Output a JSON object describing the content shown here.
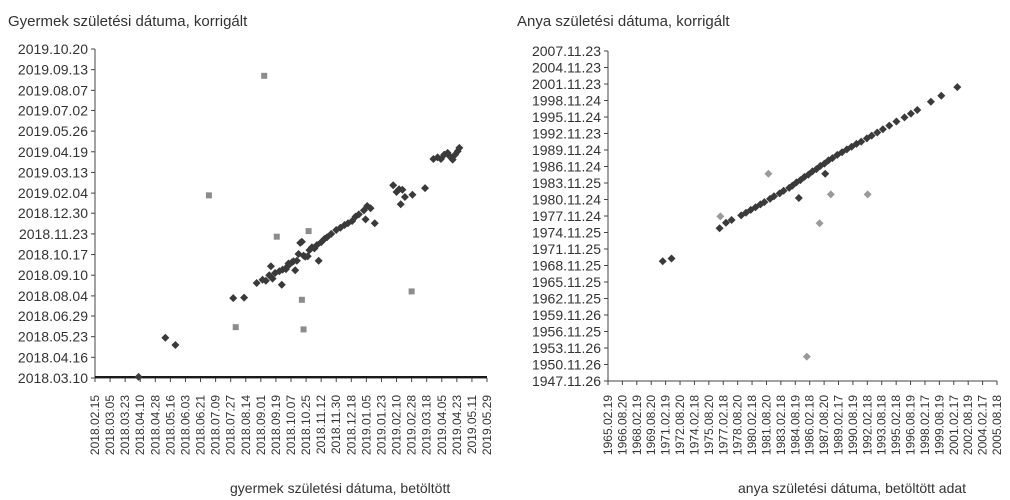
{
  "chart_data": [
    {
      "type": "scatter",
      "title": "Gyermek születési dátuma, korrigált",
      "xlabel": "gyermek születési dátuma, betöltött",
      "ylabel": "Gyermek születési dátuma, korrigált",
      "xlim": [
        "2018-02-15",
        "2019-05-29"
      ],
      "ylim": [
        "2018-03-10",
        "2019-10-20"
      ],
      "x_ticks": [
        "2018.02.15",
        "2018.03.05",
        "2018.03.23",
        "2018.04.10",
        "2018.04.28",
        "2018.05.16",
        "2018.06.03",
        "2018.06.21",
        "2018.07.09",
        "2018.07.27",
        "2018.08.14",
        "2018.09.01",
        "2018.09.19",
        "2018.10.07",
        "2018.10.25",
        "2018.11.12",
        "2018.11.30",
        "2018.12.18",
        "2019.01.05",
        "2019.01.23",
        "2019.02.10",
        "2019.02.28",
        "2019.03.18",
        "2019.04.05",
        "2019.04.23",
        "2019.05.11",
        "2019.05.29"
      ],
      "y_ticks": [
        "2019.10.20",
        "2019.09.13",
        "2019.08.07",
        "2019.07.02",
        "2019.05.26",
        "2019.04.19",
        "2019.03.13",
        "2019.02.04",
        "2018.12.30",
        "2018.11.23",
        "2018.10.17",
        "2018.09.10",
        "2018.08.04",
        "2018.06.29",
        "2018.05.23",
        "2018.04.16",
        "2018.03.10"
      ],
      "grid": false,
      "series": [
        {
          "marker": "diamond",
          "color": "#3a3a3a",
          "points": [
            [
              "2018-04-08",
              "2018-03-12"
            ],
            [
              "2018-05-10",
              "2018-05-21"
            ],
            [
              "2018-05-22",
              "2018-05-08"
            ],
            [
              "2018-07-30",
              "2018-07-31"
            ],
            [
              "2018-08-12",
              "2018-08-01"
            ],
            [
              "2018-08-27",
              "2018-08-27"
            ],
            [
              "2018-09-03",
              "2018-09-02"
            ],
            [
              "2018-09-07",
              "2018-08-31"
            ],
            [
              "2018-09-11",
              "2018-09-10"
            ],
            [
              "2018-09-13",
              "2018-09-26"
            ],
            [
              "2018-09-15",
              "2018-09-04"
            ],
            [
              "2018-09-18",
              "2018-09-14"
            ],
            [
              "2018-09-23",
              "2018-09-17"
            ],
            [
              "2018-09-26",
              "2018-08-24"
            ],
            [
              "2018-09-27",
              "2018-09-20"
            ],
            [
              "2018-10-01",
              "2018-09-21"
            ],
            [
              "2018-10-03",
              "2018-09-26"
            ],
            [
              "2018-10-04",
              "2018-10-01"
            ],
            [
              "2018-10-08",
              "2018-10-03"
            ],
            [
              "2018-10-10",
              "2018-10-05"
            ],
            [
              "2018-10-12",
              "2018-09-19"
            ],
            [
              "2018-10-14",
              "2018-10-06"
            ],
            [
              "2018-10-16",
              "2018-10-18"
            ],
            [
              "2018-10-18",
              "2018-11-07"
            ],
            [
              "2018-10-20",
              "2018-11-09"
            ],
            [
              "2018-10-22",
              "2018-10-15"
            ],
            [
              "2018-10-24",
              "2018-10-13"
            ],
            [
              "2018-10-27",
              "2018-10-14"
            ],
            [
              "2018-10-29",
              "2018-10-25"
            ],
            [
              "2018-11-01",
              "2018-10-30"
            ],
            [
              "2018-11-04",
              "2018-10-28"
            ],
            [
              "2018-11-07",
              "2018-11-03"
            ],
            [
              "2018-11-09",
              "2018-10-06"
            ],
            [
              "2018-11-12",
              "2018-11-08"
            ],
            [
              "2018-11-16",
              "2018-11-14"
            ],
            [
              "2018-11-19",
              "2018-11-17"
            ],
            [
              "2018-11-24",
              "2018-11-23"
            ],
            [
              "2018-11-30",
              "2018-11-30"
            ],
            [
              "2018-12-05",
              "2018-12-04"
            ],
            [
              "2018-12-10",
              "2018-12-09"
            ],
            [
              "2018-12-14",
              "2018-12-12"
            ],
            [
              "2018-12-19",
              "2018-12-16"
            ],
            [
              "2018-12-23",
              "2018-12-24"
            ],
            [
              "2018-12-27",
              "2018-12-28"
            ],
            [
              "2019-01-02",
              "2019-01-04"
            ],
            [
              "2019-01-04",
              "2018-12-19"
            ],
            [
              "2019-01-06",
              "2019-01-12"
            ],
            [
              "2019-01-10",
              "2019-01-08"
            ],
            [
              "2019-01-15",
              "2018-12-12"
            ],
            [
              "2019-02-06",
              "2019-02-18"
            ],
            [
              "2019-02-10",
              "2019-02-06"
            ],
            [
              "2019-02-13",
              "2019-02-11"
            ],
            [
              "2019-02-15",
              "2019-01-15"
            ],
            [
              "2019-02-17",
              "2019-02-10"
            ],
            [
              "2019-02-20",
              "2019-01-28"
            ],
            [
              "2019-03-01",
              "2019-02-01"
            ],
            [
              "2019-03-16",
              "2019-02-13"
            ],
            [
              "2019-03-26",
              "2019-04-06"
            ],
            [
              "2019-03-31",
              "2019-04-09"
            ],
            [
              "2019-04-04",
              "2019-04-06"
            ],
            [
              "2019-04-08",
              "2019-04-14"
            ],
            [
              "2019-04-12",
              "2019-04-17"
            ],
            [
              "2019-04-15",
              "2019-04-10"
            ],
            [
              "2019-04-18",
              "2019-04-05"
            ],
            [
              "2019-04-21",
              "2019-04-14"
            ],
            [
              "2019-04-24",
              "2019-04-20"
            ],
            [
              "2019-04-26",
              "2019-04-26"
            ]
          ]
        },
        {
          "marker": "square",
          "color": "#8c8c8c",
          "points": [
            [
              "2018-09-05",
              "2019-09-02"
            ],
            [
              "2018-07-01",
              "2019-01-31"
            ],
            [
              "2018-09-20",
              "2018-11-18"
            ],
            [
              "2018-10-28",
              "2018-11-28"
            ],
            [
              "2018-10-20",
              "2018-07-28"
            ],
            [
              "2018-10-22",
              "2018-06-05"
            ],
            [
              "2018-08-02",
              "2018-06-09"
            ],
            [
              "2019-02-28",
              "2018-08-12"
            ]
          ]
        }
      ],
      "threshold_line": {
        "y": "2018-03-10",
        "color": "#1a1a1a"
      }
    },
    {
      "type": "scatter",
      "title": "Anya születési dátuma, korrigált",
      "xlabel": "anya születési dátuma, betöltött adat",
      "ylabel": "Anya születési dátuma, korrigált",
      "xlim": [
        "1965-02-19",
        "2005-08-18"
      ],
      "ylim": [
        "1947-11-26",
        "2007-11-23"
      ],
      "x_ticks": [
        "1965.02.19",
        "1966.08.20",
        "1968.02.19",
        "1969.08.20",
        "1971.02.19",
        "1972.08.20",
        "1974.02.18",
        "1975.08.20",
        "1977.02.18",
        "1978.08.20",
        "1980.02.18",
        "1981.08.20",
        "1983.02.18",
        "1984.08.19",
        "1986.02.18",
        "1987.08.20",
        "1989.02.17",
        "1990.08.19",
        "1992.02.18",
        "1993.08.18",
        "1995.02.18",
        "1996.08.19",
        "1998.02.17",
        "1999.08.19",
        "2001.02.17",
        "2002.08.19",
        "2004.02.17",
        "2005.08.18"
      ],
      "y_ticks": [
        "2007.11.23",
        "2004.11.23",
        "2001.11.23",
        "1998.11.24",
        "1995.11.24",
        "1992.11.23",
        "1989.11.24",
        "1986.11.24",
        "1983.11.25",
        "1980.11.24",
        "1977.11.24",
        "1974.11.25",
        "1971.11.25",
        "1968.11.25",
        "1965.11.25",
        "1962.11.25",
        "1959.11.26",
        "1956.11.25",
        "1953.11.26",
        "1950.11.26",
        "1947.11.26"
      ],
      "grid": false,
      "series": [
        {
          "marker": "diamond",
          "color": "#3a3a3a",
          "points": [
            [
              "1970-11-01",
              "1969-09-01"
            ],
            [
              "1971-10-01",
              "1970-03-01"
            ],
            [
              "1976-10-01",
              "1975-09-01"
            ],
            [
              "1977-06-01",
              "1976-09-01"
            ],
            [
              "1978-01-01",
              "1977-03-01"
            ],
            [
              "1979-01-01",
              "1978-01-01"
            ],
            [
              "1979-07-01",
              "1978-07-01"
            ],
            [
              "1980-01-01",
              "1979-01-01"
            ],
            [
              "1980-07-01",
              "1979-07-01"
            ],
            [
              "1981-01-01",
              "1980-01-01"
            ],
            [
              "1981-06-01",
              "1980-06-01"
            ],
            [
              "1982-01-01",
              "1981-01-01"
            ],
            [
              "1982-06-01",
              "1981-07-01"
            ],
            [
              "1983-01-01",
              "1982-01-01"
            ],
            [
              "1983-06-01",
              "1982-07-01"
            ],
            [
              "1984-01-01",
              "1983-01-01"
            ],
            [
              "1984-05-01",
              "1983-06-01"
            ],
            [
              "1984-10-01",
              "1984-01-01"
            ],
            [
              "1985-03-01",
              "1984-06-01"
            ],
            [
              "1985-08-01",
              "1985-01-01"
            ],
            [
              "1986-01-01",
              "1985-06-01"
            ],
            [
              "1986-06-01",
              "1986-01-01"
            ],
            [
              "1986-11-01",
              "1986-06-01"
            ],
            [
              "1987-04-01",
              "1987-01-01"
            ],
            [
              "1987-09-01",
              "1987-06-01"
            ],
            [
              "1988-02-01",
              "1988-01-01"
            ],
            [
              "1988-07-01",
              "1988-06-01"
            ],
            [
              "1989-01-01",
              "1989-01-01"
            ],
            [
              "1989-07-01",
              "1989-07-01"
            ],
            [
              "1990-01-01",
              "1990-01-01"
            ],
            [
              "1990-07-01",
              "1990-07-01"
            ],
            [
              "1991-01-01",
              "1991-01-01"
            ],
            [
              "1991-07-01",
              "1991-06-01"
            ],
            [
              "1992-02-01",
              "1992-01-01"
            ],
            [
              "1992-08-01",
              "1992-07-01"
            ],
            [
              "1993-03-01",
              "1993-02-01"
            ],
            [
              "1993-10-01",
              "1993-09-01"
            ],
            [
              "1994-06-01",
              "1994-05-01"
            ],
            [
              "1995-03-01",
              "1995-02-01"
            ],
            [
              "1996-01-01",
              "1995-11-01"
            ],
            [
              "1996-09-01",
              "1996-07-01"
            ],
            [
              "1997-05-01",
              "1997-03-01"
            ],
            [
              "1998-10-01",
              "1998-09-01"
            ],
            [
              "1999-11-01",
              "1999-10-01"
            ],
            [
              "2001-07-01",
              "2001-05-01"
            ],
            [
              "1985-01-01",
              "1981-03-01"
            ],
            [
              "1987-10-01",
              "1985-08-01"
            ]
          ]
        },
        {
          "marker": "diamond",
          "color": "#9a9a9a",
          "points": [
            [
              "1976-11-01",
              "1977-11-01"
            ],
            [
              "1981-11-01",
              "1985-08-01"
            ],
            [
              "1987-03-01",
              "1976-08-01"
            ],
            [
              "1985-11-01",
              "1952-05-01"
            ],
            [
              "1988-05-01",
              "1981-11-01"
            ],
            [
              "1992-03-01",
              "1981-11-01"
            ]
          ]
        }
      ]
    }
  ]
}
